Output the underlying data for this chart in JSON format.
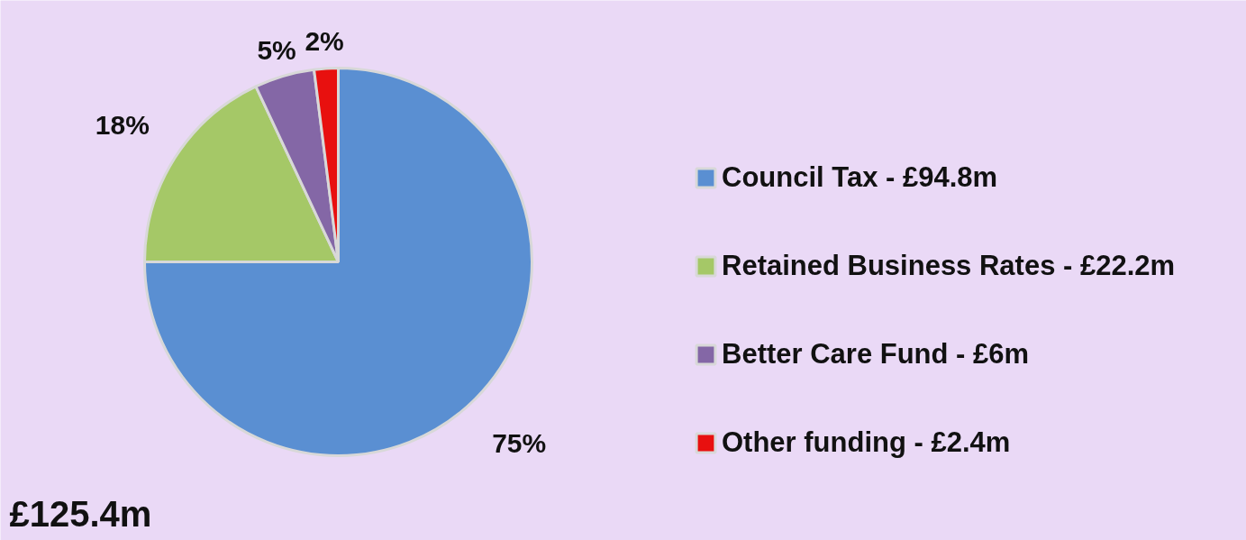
{
  "chart_data": {
    "type": "pie",
    "categories": [
      "Council Tax - £94.8m",
      "Retained Business Rates - £22.2m",
      "Better Care Fund - £6m",
      "Other funding - £2.4m"
    ],
    "values": [
      75,
      18,
      5,
      2
    ],
    "colors": [
      "#5a8fd2",
      "#a5c867",
      "#8467a6",
      "#e8100f"
    ],
    "value_labels": [
      "75%",
      "18%",
      "5%",
      "2%"
    ],
    "legend": "right",
    "annotations": [
      "£125.4m"
    ]
  }
}
